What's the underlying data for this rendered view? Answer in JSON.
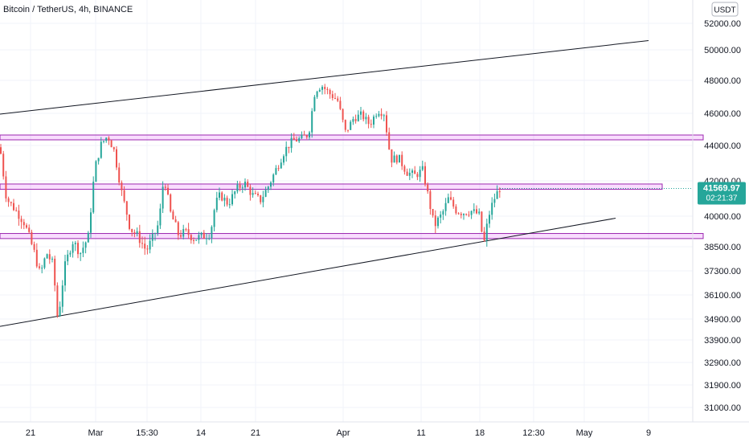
{
  "chart_data": {
    "type": "candlestick",
    "title": "Bitcoin / TetherUS, 4h, BINANCE",
    "currency": "USDT",
    "last_price": "41569.97",
    "countdown": "02:21:37",
    "y_ticks": [
      52000,
      50000,
      48000,
      46000,
      44000,
      42000,
      40000,
      38500,
      37300,
      36100,
      34900,
      33900,
      32900,
      31900,
      31000
    ],
    "y_tick_labels": [
      "52000.00",
      "50000.00",
      "48000.00",
      "46000.00",
      "44000.00",
      "42000.00",
      "40000.00",
      "38500.00",
      "37300.00",
      "36100.00",
      "34900.00",
      "33900.00",
      "32900.00",
      "31900.00",
      "31000.00"
    ],
    "x_tick_labels": [
      "21",
      "Mar",
      "15:30",
      "14",
      "21",
      "Apr",
      "11",
      "18",
      "12:30",
      "May",
      "9"
    ],
    "zones": [
      {
        "low": 44350,
        "high": 44650
      },
      {
        "low": 41520,
        "high": 41820
      },
      {
        "low": 38900,
        "high": 39150
      }
    ],
    "trendlines": [
      {
        "from": 45950,
        "to": 50700
      },
      {
        "from": 34550,
        "to": 39900
      }
    ],
    "path_points": [
      [
        0,
        43900
      ],
      [
        8,
        41000
      ],
      [
        20,
        40300
      ],
      [
        30,
        39700
      ],
      [
        42,
        38300
      ],
      [
        50,
        37100
      ],
      [
        58,
        38200
      ],
      [
        66,
        37600
      ],
      [
        72,
        34800
      ],
      [
        80,
        37400
      ],
      [
        90,
        38800
      ],
      [
        100,
        38200
      ],
      [
        110,
        39000
      ],
      [
        118,
        42700
      ],
      [
        126,
        44100
      ],
      [
        134,
        44600
      ],
      [
        142,
        43700
      ],
      [
        152,
        41200
      ],
      [
        162,
        39400
      ],
      [
        172,
        39000
      ],
      [
        182,
        38300
      ],
      [
        190,
        38900
      ],
      [
        198,
        39700
      ],
      [
        204,
        42300
      ],
      [
        212,
        40200
      ],
      [
        222,
        39100
      ],
      [
        232,
        39200
      ],
      [
        242,
        38900
      ],
      [
        252,
        39000
      ],
      [
        262,
        39200
      ],
      [
        268,
        40700
      ],
      [
        274,
        41200
      ],
      [
        284,
        40700
      ],
      [
        294,
        41500
      ],
      [
        304,
        41900
      ],
      [
        314,
        41200
      ],
      [
        324,
        40900
      ],
      [
        334,
        41700
      ],
      [
        344,
        42700
      ],
      [
        354,
        43700
      ],
      [
        364,
        44300
      ],
      [
        374,
        44400
      ],
      [
        384,
        44700
      ],
      [
        392,
        47400
      ],
      [
        400,
        47700
      ],
      [
        410,
        47200
      ],
      [
        420,
        46800
      ],
      [
        430,
        44800
      ],
      [
        440,
        45700
      ],
      [
        450,
        45900
      ],
      [
        460,
        45300
      ],
      [
        470,
        46200
      ],
      [
        478,
        46000
      ],
      [
        486,
        43200
      ],
      [
        496,
        43300
      ],
      [
        506,
        42500
      ],
      [
        516,
        42300
      ],
      [
        526,
        42600
      ],
      [
        532,
        41300
      ],
      [
        540,
        39500
      ],
      [
        550,
        40100
      ],
      [
        558,
        41000
      ],
      [
        568,
        40300
      ],
      [
        576,
        40200
      ],
      [
        586,
        40300
      ],
      [
        596,
        40100
      ],
      [
        602,
        38600
      ],
      [
        608,
        40000
      ],
      [
        614,
        40900
      ],
      [
        622,
        41600
      ]
    ]
  }
}
